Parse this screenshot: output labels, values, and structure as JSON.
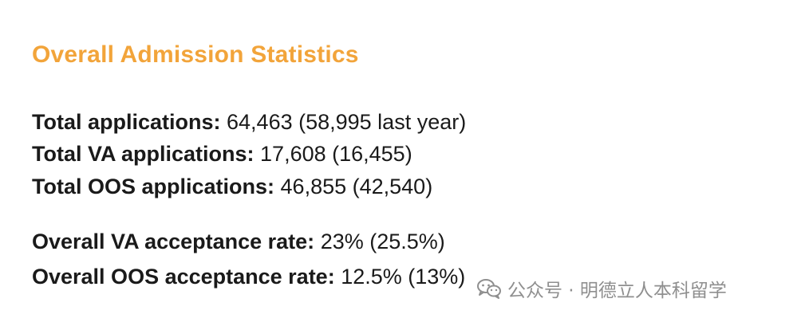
{
  "title": "Overall Admission Statistics",
  "stats": [
    {
      "label": "Total applications:",
      "value": " 64,463 (58,995 last year)"
    },
    {
      "label": "Total VA applications:",
      "value": " 17,608 (16,455)"
    },
    {
      "label": "Total OOS applications:",
      "value": " 46,855 (42,540)"
    },
    {
      "label": "Overall VA acceptance rate:",
      "value": " 23% (25.5%)"
    },
    {
      "label": "Overall OOS acceptance rate:",
      "value": " 12.5% (13%)"
    }
  ],
  "watermark": {
    "icon": "wechat-icon",
    "text": "公众号 · 明德立人本科留学"
  },
  "colors": {
    "heading": "#f2a43a",
    "text": "#1a1a1a",
    "watermark": "#8a8a8a"
  }
}
